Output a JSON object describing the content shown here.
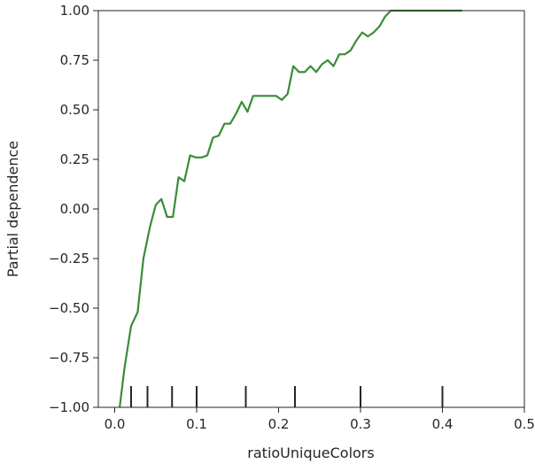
{
  "chart_data": {
    "type": "line",
    "title": "",
    "xlabel": "ratioUniqueColors",
    "ylabel": "Partial dependence",
    "xlim": [
      -0.02,
      0.5
    ],
    "ylim": [
      -1.0,
      1.0
    ],
    "xticks": [
      0.0,
      0.1,
      0.2,
      0.3,
      0.4,
      0.5
    ],
    "xtick_labels": [
      "0.0",
      "0.1",
      "0.2",
      "0.3",
      "0.4",
      "0.5"
    ],
    "yticks": [
      1.0,
      0.75,
      0.5,
      0.25,
      0.0,
      -0.25,
      -0.5,
      -0.75,
      -1.0
    ],
    "ytick_labels": [
      "1.00",
      "0.75",
      "0.50",
      "0.25",
      "0.00",
      "−0.25",
      "−0.50",
      "−0.75",
      "−1.00"
    ],
    "grid": false,
    "line_color": "#3a8c37",
    "rug_color": "#262626",
    "series": [
      {
        "x": [
          0.006,
          0.012,
          0.02,
          0.028,
          0.035,
          0.043,
          0.05,
          0.057,
          0.064,
          0.071,
          0.078,
          0.085,
          0.092,
          0.099,
          0.106,
          0.113,
          0.12,
          0.127,
          0.134,
          0.141,
          0.148,
          0.155,
          0.162,
          0.169,
          0.176,
          0.183,
          0.19,
          0.197,
          0.204,
          0.211,
          0.218,
          0.225,
          0.232,
          0.239,
          0.246,
          0.253,
          0.26,
          0.267,
          0.274,
          0.281,
          0.288,
          0.295,
          0.302,
          0.309,
          0.316,
          0.323,
          0.33,
          0.337,
          0.344,
          0.351,
          0.358,
          0.365,
          0.372,
          0.379,
          0.386,
          0.393,
          0.4,
          0.407,
          0.414,
          0.421,
          0.424
        ],
        "y": [
          -1.0,
          -0.8,
          -0.59,
          -0.52,
          -0.25,
          -0.09,
          0.02,
          0.05,
          -0.04,
          -0.04,
          0.16,
          0.14,
          0.27,
          0.26,
          0.26,
          0.27,
          0.36,
          0.37,
          0.43,
          0.43,
          0.48,
          0.54,
          0.49,
          0.57,
          0.57,
          0.57,
          0.57,
          0.57,
          0.55,
          0.58,
          0.72,
          0.69,
          0.69,
          0.72,
          0.69,
          0.73,
          0.75,
          0.72,
          0.78,
          0.78,
          0.8,
          0.85,
          0.89,
          0.87,
          0.89,
          0.92,
          0.97,
          1.0,
          1.0,
          1.0,
          1.0,
          1.0,
          1.0,
          1.0,
          1.0,
          1.0,
          1.0,
          1.0,
          1.0,
          1.0,
          1.0
        ]
      }
    ],
    "rug": [
      0.02,
      0.04,
      0.07,
      0.1,
      0.16,
      0.22,
      0.3,
      0.4
    ]
  }
}
